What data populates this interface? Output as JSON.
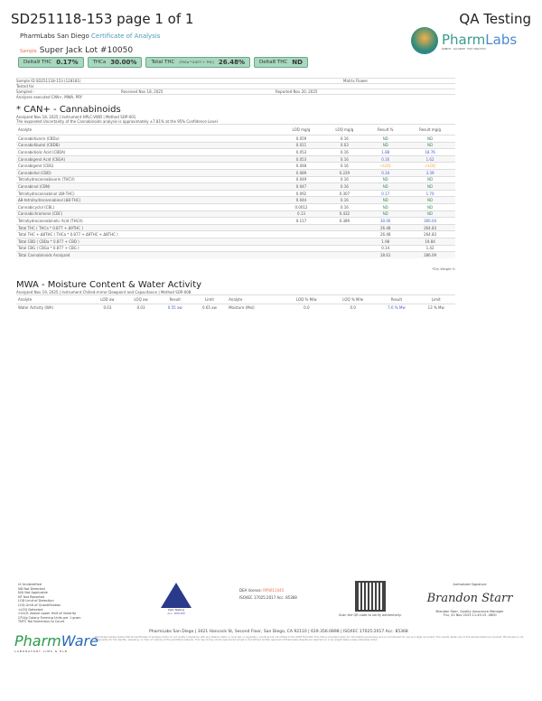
{
  "header": {
    "title": "SD251118-153 page 1 of 1",
    "right": "QA Testing",
    "lab": "PharmLabs San Diego",
    "doc_type": "Certificate of Analysis",
    "sample_label": "Sample",
    "sample_name": "Super Jack Lot #10050"
  },
  "badges": [
    {
      "label": "Delta9 THC",
      "formula": "",
      "value": "0.17%"
    },
    {
      "label": "THCa",
      "formula": "",
      "value": "30.00%"
    },
    {
      "label": "Total THC",
      "formula": "(THCa * 0.877 + THC)",
      "value": "26.48%"
    },
    {
      "label": "Delta8 THC",
      "formula": "",
      "value": "ND"
    }
  ],
  "logo": {
    "name_a": "Pharm",
    "name_b": "Labs",
    "tagline": "ROBUST · ACCURATE · FAST ANALYTICS"
  },
  "info": {
    "sample_id": "Sample ID  SD251118-153 (128181)",
    "matrix": "Matrix  Flower",
    "tested_for": "Tested for",
    "sampled": "Sampled  -",
    "received": "Received  Nov 18, 2025",
    "reported": "Reported  Nov 20, 2025",
    "analyses": "Analyses executed  CAN+, MWA, PRY"
  },
  "cannabinoids": {
    "title": "* CAN+ - Cannabinoids",
    "analyzed": "Analyzed Nov 18, 2025  |  Instrument HPLC-VWD  |  Method SOP-001",
    "uncertainty": "The expanded Uncertainty of the Cannabinoids analysis is approximately ±7.81% at the 95% Confidence Level",
    "headers": [
      "Analyte",
      "LOD mg/g",
      "LOQ mg/g",
      "Result %",
      "Result mg/g"
    ],
    "rows": [
      [
        "Cannabidivarin (CBDv)",
        "0.059",
        "0.16",
        "ND",
        "ND"
      ],
      [
        "Cannabidibutol (CBDB)",
        "0.011",
        "0.03",
        "ND",
        "ND"
      ],
      [
        "Cannabidiolic Acid (CBDA)",
        "0.053",
        "0.16",
        "1.88",
        "18.76"
      ],
      [
        "Cannabigerol Acid (CBGA)",
        "0.053",
        "0.16",
        "0.16",
        "1.62"
      ],
      [
        "Cannabigerol (CBG)",
        "0.048",
        "0.16",
        "<LOQ",
        "<LOQ"
      ],
      [
        "Cannabidiol (CBD)",
        "0.089",
        "0.229",
        "0.34",
        "3.39"
      ],
      [
        "Tetrahydrocannabivarin (THCV)",
        "0.049",
        "0.16",
        "ND",
        "ND"
      ],
      [
        "Cannabinol (CBN)",
        "0.047",
        "0.16",
        "ND",
        "ND"
      ],
      [
        "Tetrahydrocannabinol (Δ9-THC)",
        "0.092",
        "0.307",
        "0.17",
        "1.70"
      ],
      [
        "Δ8-tetrahydrocannabinol (Δ8-THC)",
        "0.044",
        "0.16",
        "ND",
        "ND"
      ],
      [
        "Cannabicyclol (CBL)",
        "0.0012",
        "0.16",
        "ND",
        "ND"
      ],
      [
        "Cannabichromene (CBC)",
        "0.13",
        "0.432",
        "ND",
        "ND"
      ],
      [
        "Tetrahydrocannabinolic Acid (THCA)",
        "0.117",
        "0.389",
        "30.00",
        "300.04"
      ],
      [
        "Total THC ( THCa * 0.877 + Δ9THC )",
        "",
        "",
        "26.48",
        "264.83"
      ],
      [
        "Total THC + Δ8THC ( THCa * 0.877 + Δ9THC + Δ8THC )",
        "",
        "",
        "26.48",
        "264.83"
      ],
      [
        "Total CBD ( CBDa * 0.877 + CBD )",
        "",
        "",
        "1.98",
        "19.84"
      ],
      [
        "Total CBG ( CBGa * 0.877 + CBG )",
        "",
        "",
        "0.14",
        "1.42"
      ],
      [
        "Total Cannabinoids Analyzed",
        "",
        "",
        "28.61",
        "286.09"
      ]
    ],
    "note": "*Dry Weight %"
  },
  "mwa": {
    "title": "MWA - Moisture Content & Water Activity",
    "analyzed": "Analyzed Nov 19, 2025  |  Instrument Chilled-mirror Dewpoint and Capacitance  |  Method SOP-008",
    "headers": [
      "Analyte",
      "LOD aw",
      "LOQ aw",
      "Result",
      "Limit",
      "Analyte",
      "LOD % M/w",
      "LOQ % M/w",
      "Result",
      "Limit"
    ],
    "row": [
      "Water Activity (WA)",
      "0.03",
      "0.03",
      "0.55 aw",
      "0.65 aw",
      "Moisture (Mol)",
      "0.0",
      "0.0",
      "7.6 % Mw",
      "13 % Mw"
    ]
  },
  "footer": {
    "legend": [
      "UI Unidentified",
      "ND Not Detected",
      "N/A Not Applicable",
      "NT Not Reported",
      "LOD Limit of Detection",
      "LOQ Limit of Quantification",
      "<LOQ Detected",
      ">ULOL Above upper limit of linearity",
      "CFU/g Colony Forming Units per 1 gram",
      "TNTC Too Numerous to Count"
    ],
    "ptla": "PJLA Testing",
    "ptla_acc": "Acc. #85368",
    "dea_label": "DEA license:",
    "dea": "RP0611045",
    "iso": "ISO/IEC 17025:2017 Acc. 85368",
    "qr_caption": "Scan the QR code to verify authenticity.",
    "sig_label": "Authorized Signature",
    "signature": "Brandon Starr",
    "signer": "Brandon Starr, Quality Assurance Manager",
    "signed": "Thu, 20 Nov 2025 11:45:15 -0800",
    "address": "PharmLabs San Diego | 3421 Hancock St, Second Floor, San Diego, CA 92110 | 619.356.0898 | ISO/IEC 17025:2017 Acc. 85368",
    "disclaimer": "PharmLabs hereby states that its Certificates of Analysis (COA) do not certify compliance with any federal, state, or local law or regulation, including but not limited to the 2018 Farm Bill. This COA is provided solely for informational purposes and is not intended for use as a legal document. The results relate only to the sample tested as received. PharmLabs is not responsible for the identity, sampling, or chain of custody of the submitted material. This report may not be reproduced except in full without written approval of PharmLabs. Results are reported on a dry weight basis unless otherwise noted.",
    "pw_a": "Pharm",
    "pw_b": "Ware",
    "pw_tag": "LABORATORY LIMS & ELN"
  }
}
